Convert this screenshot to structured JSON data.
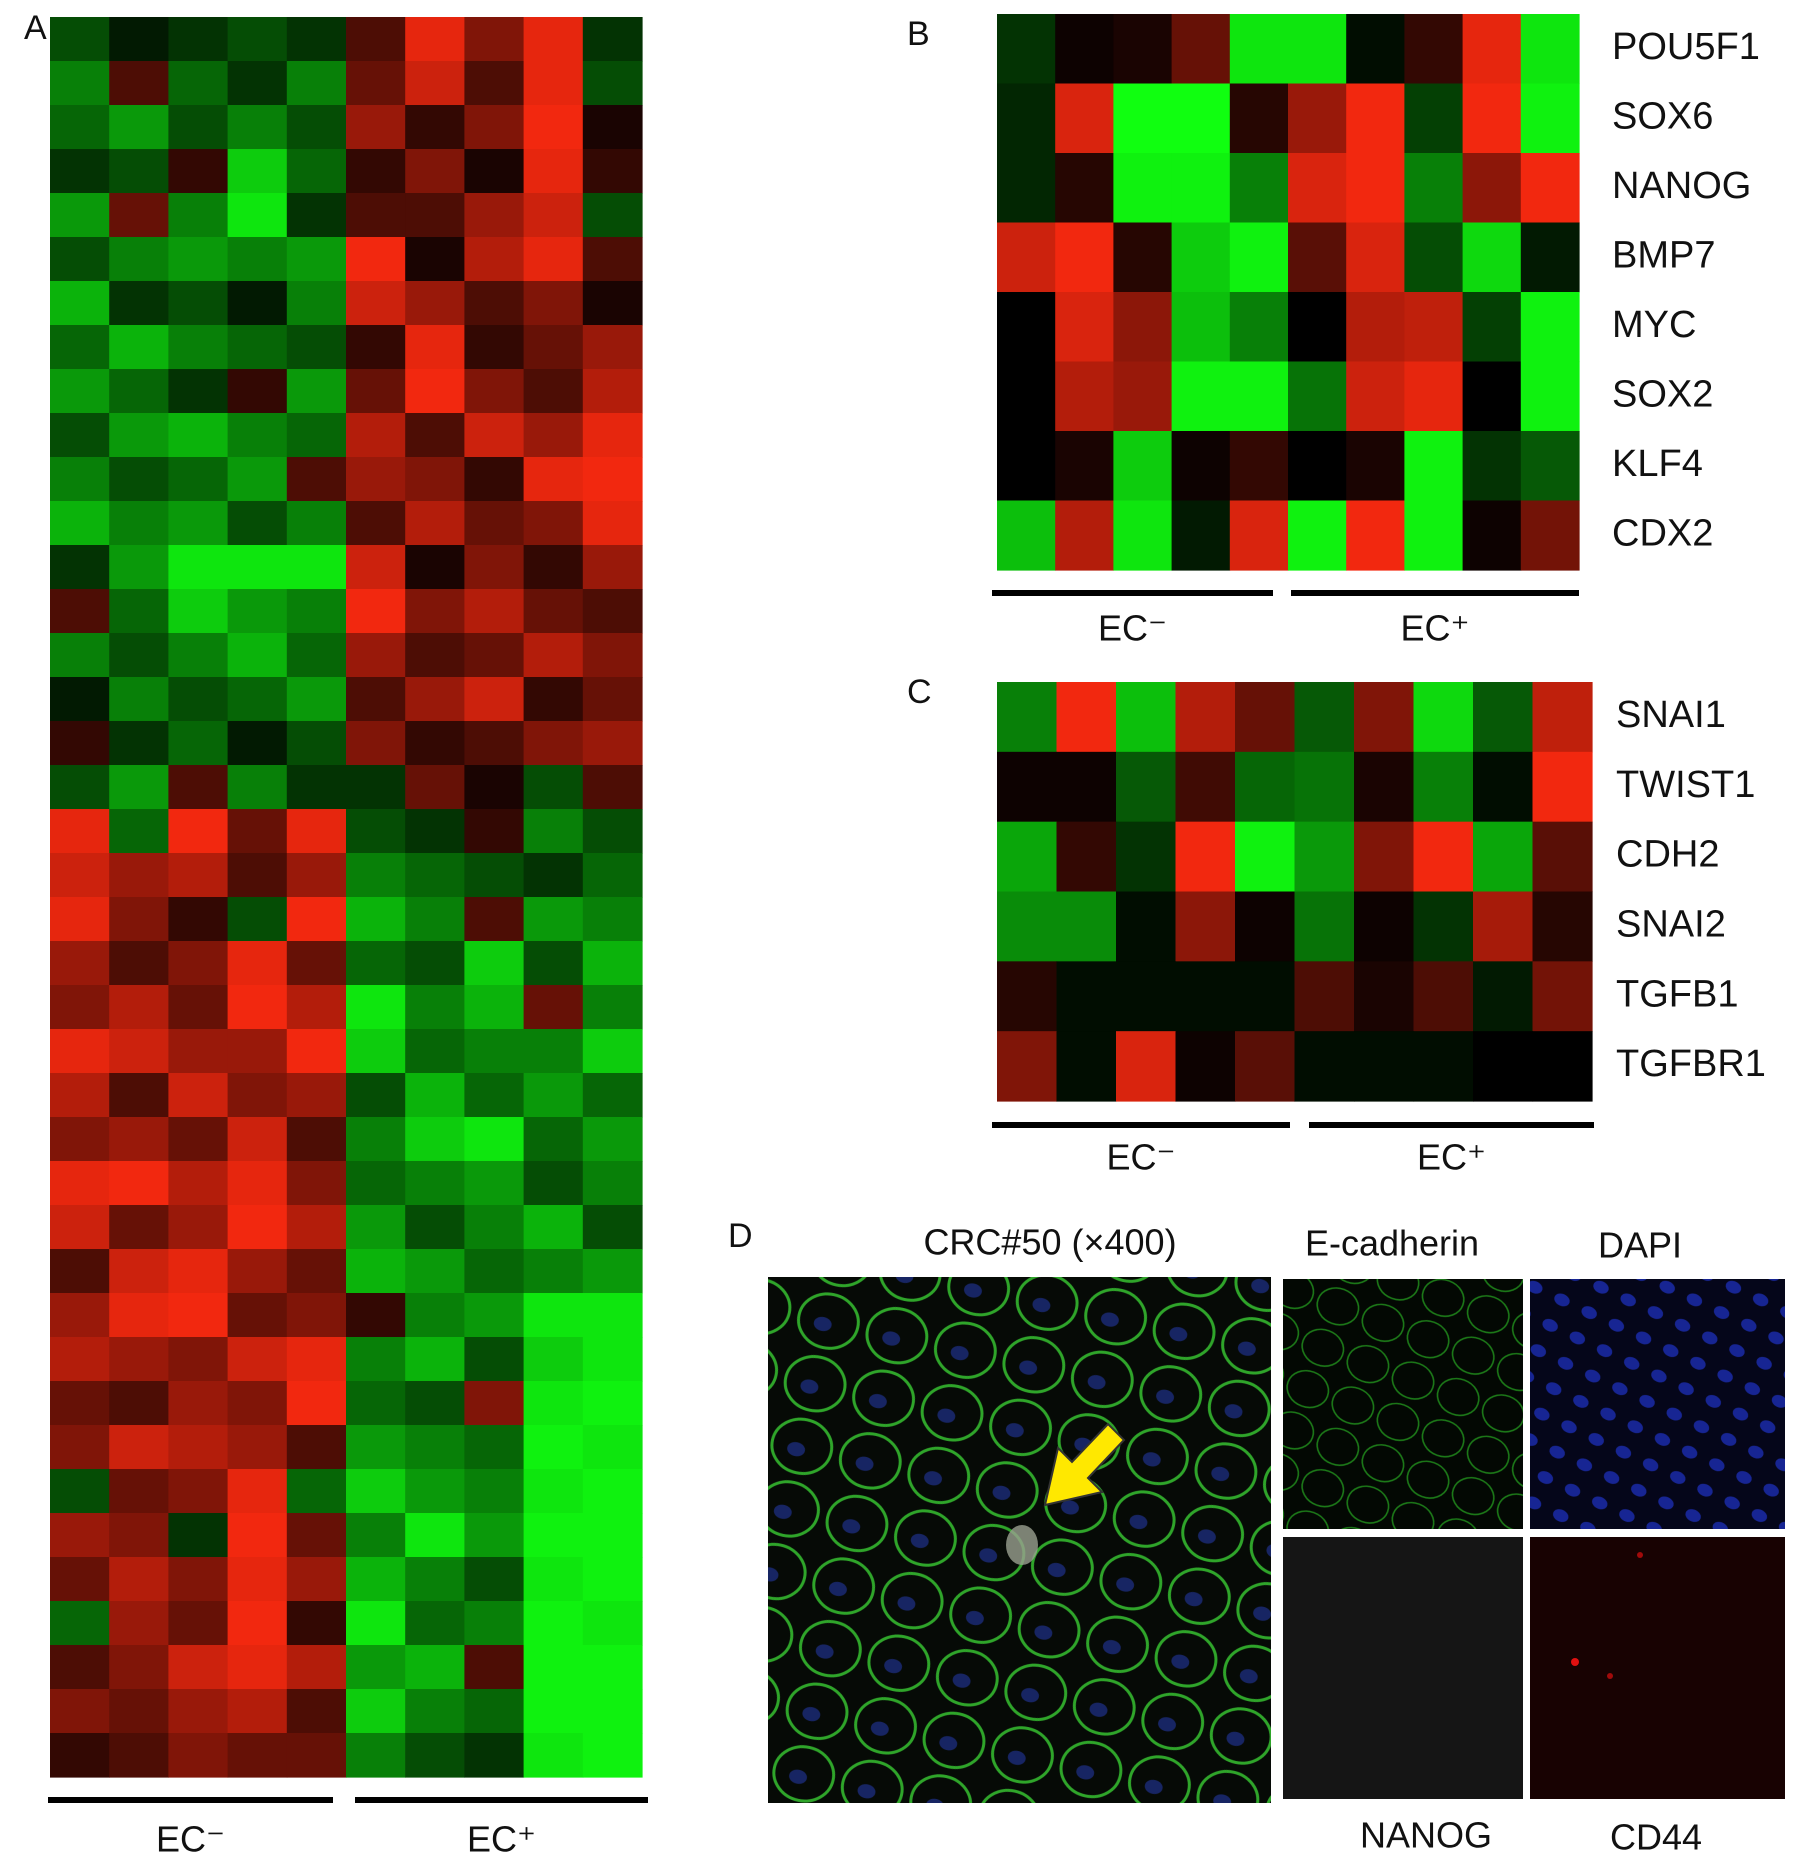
{
  "chart_data": [
    {
      "type": "heatmap",
      "panel": "A",
      "x_groups": [
        "EC⁻",
        "EC⁺"
      ],
      "colormap": {
        "low": "#10ff10",
        "mid": "#000000",
        "high": "#ff2a10"
      },
      "matrix": [
        [
          -0.3,
          -0.1,
          -0.2,
          -0.3,
          -0.2,
          0.3,
          0.9,
          0.5,
          0.9,
          -0.2
        ],
        [
          -0.5,
          0.3,
          -0.4,
          -0.2,
          -0.5,
          0.4,
          0.8,
          0.3,
          0.9,
          -0.3
        ],
        [
          -0.4,
          -0.6,
          -0.3,
          -0.5,
          -0.3,
          0.6,
          0.2,
          0.5,
          0.95,
          0.1
        ],
        [
          -0.2,
          -0.3,
          0.2,
          -0.8,
          -0.4,
          0.2,
          0.5,
          0.1,
          0.9,
          0.2
        ],
        [
          -0.6,
          0.4,
          -0.5,
          -0.9,
          -0.2,
          0.3,
          0.3,
          0.6,
          0.8,
          -0.3
        ],
        [
          -0.3,
          -0.5,
          -0.6,
          -0.5,
          -0.6,
          0.95,
          0.1,
          0.7,
          0.9,
          0.3
        ],
        [
          -0.7,
          -0.2,
          -0.3,
          -0.1,
          -0.5,
          0.8,
          0.6,
          0.3,
          0.5,
          0.1
        ],
        [
          -0.4,
          -0.7,
          -0.5,
          -0.4,
          -0.3,
          0.2,
          0.9,
          0.2,
          0.4,
          0.6
        ],
        [
          -0.6,
          -0.4,
          -0.2,
          0.2,
          -0.6,
          0.4,
          0.95,
          0.5,
          0.3,
          0.7
        ],
        [
          -0.3,
          -0.6,
          -0.7,
          -0.5,
          -0.4,
          0.7,
          0.3,
          0.8,
          0.6,
          0.9
        ],
        [
          -0.5,
          -0.3,
          -0.4,
          -0.6,
          0.3,
          0.6,
          0.5,
          0.2,
          0.9,
          0.95
        ],
        [
          -0.7,
          -0.5,
          -0.6,
          -0.3,
          -0.5,
          0.3,
          0.7,
          0.4,
          0.5,
          0.9
        ],
        [
          -0.2,
          -0.6,
          -0.9,
          -0.9,
          -0.9,
          0.8,
          0.1,
          0.5,
          0.2,
          0.6
        ],
        [
          0.3,
          -0.4,
          -0.8,
          -0.6,
          -0.5,
          0.95,
          0.5,
          0.7,
          0.4,
          0.3
        ],
        [
          -0.5,
          -0.3,
          -0.5,
          -0.7,
          -0.4,
          0.6,
          0.3,
          0.4,
          0.7,
          0.5
        ],
        [
          -0.1,
          -0.5,
          -0.3,
          -0.4,
          -0.6,
          0.3,
          0.6,
          0.8,
          0.2,
          0.4
        ],
        [
          0.2,
          -0.2,
          -0.4,
          -0.1,
          -0.3,
          0.5,
          0.2,
          0.3,
          0.5,
          0.6
        ],
        [
          -0.3,
          -0.6,
          0.3,
          -0.5,
          -0.2,
          -0.2,
          0.4,
          0.1,
          -0.3,
          0.3
        ],
        [
          0.9,
          -0.4,
          0.95,
          0.4,
          0.9,
          -0.3,
          -0.2,
          0.2,
          -0.5,
          -0.3
        ],
        [
          0.8,
          0.6,
          0.7,
          0.3,
          0.6,
          -0.5,
          -0.4,
          -0.3,
          -0.2,
          -0.4
        ],
        [
          0.9,
          0.5,
          0.2,
          -0.3,
          0.95,
          -0.7,
          -0.5,
          0.3,
          -0.6,
          -0.5
        ],
        [
          0.6,
          0.3,
          0.5,
          0.9,
          0.4,
          -0.4,
          -0.3,
          -0.8,
          -0.3,
          -0.7
        ],
        [
          0.5,
          0.7,
          0.4,
          0.95,
          0.7,
          -0.9,
          -0.5,
          -0.7,
          0.4,
          -0.5
        ],
        [
          0.9,
          0.8,
          0.6,
          0.6,
          0.95,
          -0.8,
          -0.4,
          -0.5,
          -0.5,
          -0.8
        ],
        [
          0.7,
          0.3,
          0.8,
          0.5,
          0.6,
          -0.3,
          -0.7,
          -0.4,
          -0.6,
          -0.4
        ],
        [
          0.5,
          0.6,
          0.4,
          0.8,
          0.3,
          -0.5,
          -0.8,
          -0.9,
          -0.4,
          -0.6
        ],
        [
          0.9,
          0.95,
          0.7,
          0.9,
          0.5,
          -0.4,
          -0.5,
          -0.6,
          -0.3,
          -0.5
        ],
        [
          0.8,
          0.4,
          0.6,
          0.95,
          0.7,
          -0.6,
          -0.3,
          -0.5,
          -0.7,
          -0.3
        ],
        [
          0.3,
          0.8,
          0.9,
          0.6,
          0.4,
          -0.7,
          -0.6,
          -0.4,
          -0.5,
          -0.6
        ],
        [
          0.6,
          0.9,
          0.95,
          0.4,
          0.5,
          0.2,
          -0.5,
          -0.6,
          -0.9,
          -0.9
        ],
        [
          0.7,
          0.6,
          0.5,
          0.8,
          0.9,
          -0.5,
          -0.7,
          -0.3,
          -0.8,
          -0.9
        ],
        [
          0.4,
          0.3,
          0.6,
          0.5,
          0.95,
          -0.4,
          -0.3,
          0.5,
          -0.9,
          -0.95
        ],
        [
          0.5,
          0.8,
          0.7,
          0.6,
          0.3,
          -0.6,
          -0.5,
          -0.4,
          -0.95,
          -0.9
        ],
        [
          -0.3,
          0.4,
          0.5,
          0.9,
          -0.4,
          -0.8,
          -0.6,
          -0.5,
          -0.9,
          -0.95
        ],
        [
          0.6,
          0.5,
          -0.2,
          0.95,
          0.4,
          -0.5,
          -0.9,
          -0.6,
          -0.95,
          -0.95
        ],
        [
          0.4,
          0.7,
          0.5,
          0.9,
          0.6,
          -0.7,
          -0.5,
          -0.3,
          -0.9,
          -0.95
        ],
        [
          -0.4,
          0.6,
          0.4,
          0.95,
          0.2,
          -0.9,
          -0.4,
          -0.5,
          -0.95,
          -0.9
        ],
        [
          0.3,
          0.5,
          0.8,
          0.9,
          0.7,
          -0.6,
          -0.7,
          0.3,
          -0.95,
          -0.95
        ],
        [
          0.5,
          0.4,
          0.6,
          0.7,
          0.3,
          -0.8,
          -0.5,
          -0.4,
          -0.95,
          -0.95
        ],
        [
          0.2,
          0.3,
          0.5,
          0.4,
          0.4,
          -0.5,
          -0.3,
          -0.2,
          -0.9,
          -0.95
        ]
      ]
    },
    {
      "type": "heatmap",
      "panel": "B",
      "x_groups": [
        "EC⁻",
        "EC⁺"
      ],
      "colormap": {
        "low": "#10ff10",
        "mid": "#000000",
        "high": "#ff2a10"
      },
      "rows": [
        "POU5F1",
        "SOX6",
        "NANOG",
        "BMP7",
        "MYC",
        "SOX2",
        "KLF4",
        "CDX2"
      ],
      "matrix": [
        [
          -0.2,
          0.05,
          0.1,
          0.4,
          -0.9,
          -0.9,
          -0.05,
          0.2,
          0.9,
          -0.9
        ],
        [
          -0.15,
          0.85,
          -1,
          -1,
          0.15,
          0.6,
          0.95,
          -0.25,
          0.95,
          -0.95
        ],
        [
          -0.15,
          0.15,
          -0.95,
          -0.95,
          -0.5,
          0.85,
          0.95,
          -0.5,
          0.55,
          0.95
        ],
        [
          0.8,
          0.95,
          0.15,
          -0.8,
          -0.95,
          0.35,
          0.85,
          -0.3,
          -0.85,
          -0.1
        ],
        [
          0,
          0.85,
          0.55,
          -0.75,
          -0.5,
          0,
          0.7,
          0.75,
          -0.25,
          -0.95
        ],
        [
          0,
          0.7,
          0.6,
          -0.95,
          -0.95,
          -0.45,
          0.8,
          0.9,
          0,
          -0.95
        ],
        [
          0,
          0.1,
          -0.8,
          0.05,
          0.2,
          0,
          0.1,
          -0.95,
          -0.2,
          -0.35
        ],
        [
          -0.75,
          0.7,
          -0.9,
          -0.1,
          0.85,
          -0.95,
          0.95,
          -0.95,
          0.05,
          0.45
        ]
      ]
    },
    {
      "type": "heatmap",
      "panel": "C",
      "x_groups": [
        "EC⁻",
        "EC⁺"
      ],
      "colormap": {
        "low": "#10ff10",
        "mid": "#000000",
        "high": "#ff2a10"
      },
      "rows": [
        "SNAI1",
        "TWIST1",
        "CDH2",
        "SNAI2",
        "TGFB1",
        "TGFBR1"
      ],
      "matrix": [
        [
          -0.5,
          0.95,
          -0.75,
          0.7,
          0.4,
          -0.35,
          0.5,
          -0.85,
          -0.35,
          0.75
        ],
        [
          0.05,
          0.05,
          -0.35,
          0.25,
          -0.4,
          -0.45,
          0.1,
          -0.5,
          -0.05,
          0.95
        ],
        [
          -0.65,
          0.2,
          -0.2,
          0.95,
          -0.95,
          -0.6,
          0.5,
          0.95,
          -0.65,
          0.35
        ],
        [
          -0.55,
          -0.55,
          -0.05,
          0.55,
          0.05,
          -0.45,
          0.05,
          -0.2,
          0.65,
          0.15
        ],
        [
          0.15,
          -0.05,
          -0.05,
          -0.05,
          -0.05,
          0.3,
          0.1,
          0.3,
          -0.1,
          0.45
        ],
        [
          0.5,
          -0.05,
          0.85,
          0.05,
          0.35,
          -0.05,
          -0.05,
          -0.05,
          0,
          0
        ]
      ]
    }
  ],
  "micrograph": {
    "panel": "D",
    "title": "CRC#50 (×400)",
    "channels": [
      "E-cadherin",
      "DAPI",
      "NANOG",
      "CD44"
    ]
  }
}
